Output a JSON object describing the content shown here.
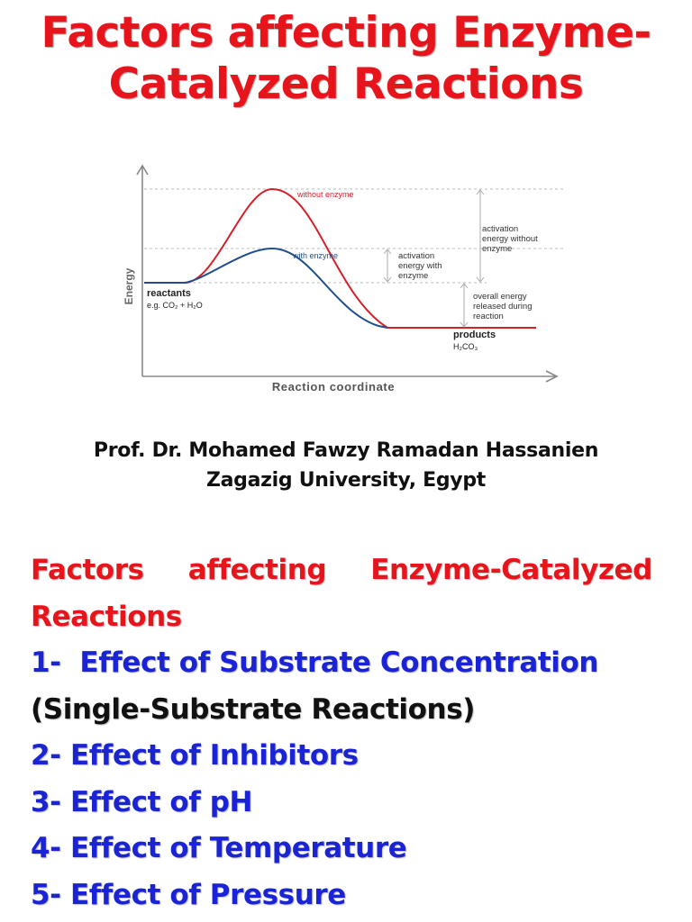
{
  "title": {
    "line1": "Factors affecting Enzyme-",
    "line2": "Catalyzed Reactions"
  },
  "figure": {
    "y_axis_label": "Energy",
    "x_axis_label": "Reaction coordinate",
    "without_enzyme": "without enzyme",
    "with_enzyme": "with enzyme",
    "ae_with": [
      "activation",
      "energy with",
      "enzyme"
    ],
    "ae_without": [
      "activation",
      "energy without",
      "enzyme"
    ],
    "released": [
      "overall energy",
      "released during",
      "reaction"
    ],
    "reactants": "reactants",
    "reactants_eg": "e.g. CO₂ + H₂O",
    "products": "products",
    "products_eg": "H₂CO₃",
    "colors": {
      "without": "#d42028",
      "with": "#1e4e8c",
      "guide": "#bbbbbb"
    }
  },
  "author": {
    "name": "Prof. Dr. Mohamed Fawzy Ramadan Hassanien",
    "affiliation": "Zagazig University, Egypt"
  },
  "list": {
    "heading_words": [
      "Factors",
      "affecting",
      "Enzyme-Catalyzed"
    ],
    "heading_line2": "Reactions",
    "items": [
      "1-  Effect of Substrate Concentration",
      "(Single-Substrate Reactions)",
      "2- Effect of Inhibitors",
      "3- Effect of pH",
      "4- Effect of Temperature",
      "5- Effect of Pressure"
    ]
  },
  "colors": {
    "title": "#e8141c",
    "list_blue": "#1a24d4",
    "text_dark": "#111111"
  }
}
